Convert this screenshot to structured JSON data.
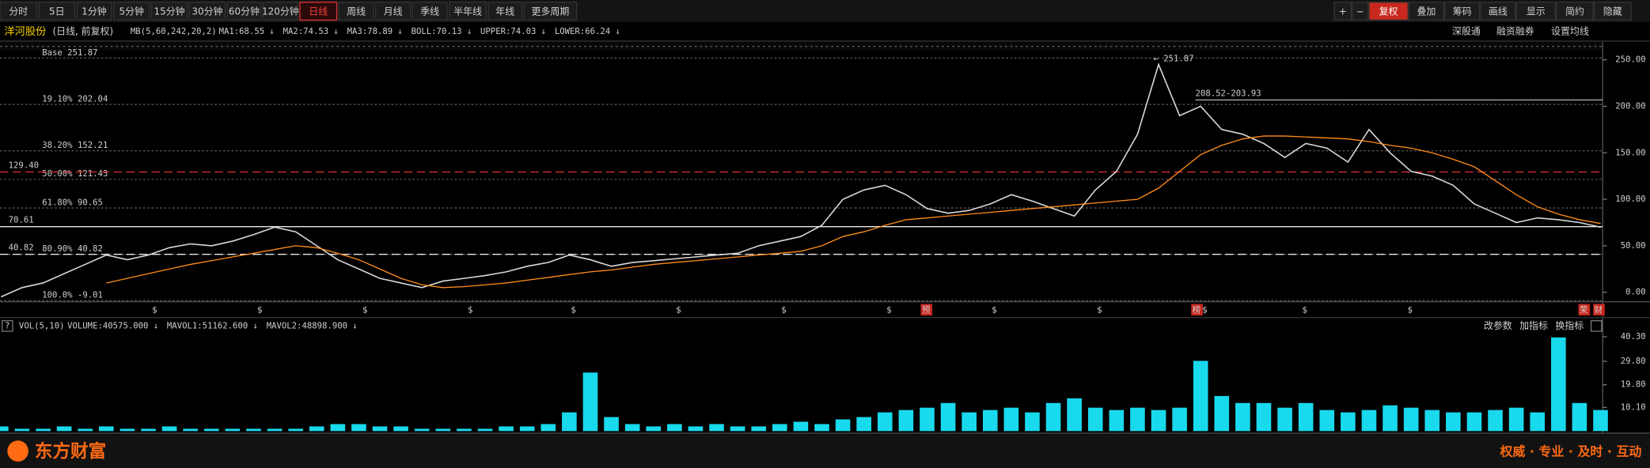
{
  "toolbar": {
    "periods": [
      "分时",
      "5日",
      "1分钟",
      "5分钟",
      "15分钟",
      "30分钟",
      "60分钟",
      "120分钟",
      "日线",
      "周线",
      "月线",
      "季线",
      "半年线",
      "年线",
      "更多周期"
    ],
    "active_period": "日线",
    "right_buttons": [
      "+",
      "−",
      "复权",
      "叠加",
      "筹码",
      "画线",
      "显示",
      "简约",
      "隐藏"
    ],
    "highlighted_button": "复权"
  },
  "info_bar": {
    "name": "洋河股份",
    "mode": "(日线, 前复权)",
    "indicator": "MB(5,60,242,20,2)",
    "items": [
      {
        "text": "MA1:68.55 ↓",
        "color": "#ff4b70"
      },
      {
        "text": "MA2:74.53 ↓",
        "color": "#3ea3ff"
      },
      {
        "text": "MA3:78.89 ↓",
        "color": "#ff9a2e"
      },
      {
        "text": "BOLL:70.13 ↓",
        "color": "#f5e23c"
      },
      {
        "text": "UPPER:74.03 ↓",
        "color": "#9a9a9a"
      },
      {
        "text": "LOWER:66.24 ↓",
        "color": "#9a9a9a"
      }
    ],
    "links": [
      "深股通",
      "融资融券",
      "设置均线"
    ]
  },
  "chart_data": [
    {
      "type": "line",
      "series": [
        {
          "color": "#d8d8d8",
          "values": [
            -5,
            5,
            10,
            20,
            30,
            40,
            35,
            40,
            48,
            52,
            50,
            55,
            62,
            70,
            65,
            50,
            35,
            25,
            15,
            10,
            5,
            12,
            15,
            18,
            22,
            28,
            32,
            40,
            35,
            28,
            32,
            34,
            36,
            38,
            40,
            42,
            50,
            55,
            60,
            72,
            100,
            110,
            115,
            105,
            90,
            85,
            88,
            95,
            105,
            98,
            90,
            82,
            110,
            130,
            170,
            245,
            190,
            200,
            175,
            170,
            160,
            145,
            160,
            155,
            140,
            175,
            150,
            130,
            125,
            115,
            95,
            85,
            75,
            80,
            78,
            75,
            70
          ]
        },
        {
          "color": "#ff8c1a",
          "values": [
            null,
            null,
            null,
            null,
            null,
            10,
            15,
            20,
            25,
            30,
            34,
            38,
            42,
            46,
            50,
            48,
            42,
            35,
            25,
            15,
            8,
            5,
            6,
            8,
            10,
            13,
            16,
            19,
            22,
            24,
            27,
            30,
            32,
            34,
            36,
            38,
            40,
            42,
            44,
            50,
            60,
            65,
            72,
            78,
            80,
            82,
            84,
            86,
            88,
            90,
            92,
            94,
            96,
            98,
            100,
            112,
            130,
            148,
            158,
            165,
            168,
            168,
            167,
            166,
            165,
            162,
            158,
            155,
            150,
            143,
            135,
            120,
            105,
            92,
            84,
            78,
            74
          ]
        }
      ],
      "ylim": [
        -8,
        269
      ],
      "yticks": [
        {
          "value": 0,
          "label": "0.00"
        },
        {
          "value": 50,
          "label": "50.00"
        },
        {
          "value": 100,
          "label": "100.00"
        },
        {
          "value": 150,
          "label": "150.00"
        },
        {
          "value": 200,
          "label": "200.00"
        },
        {
          "value": 250,
          "label": "250.00"
        }
      ],
      "levels": [
        {
          "value": 251.87,
          "label": "Base 251.87"
        },
        {
          "value": 202.04,
          "label": "19.10% 202.04"
        },
        {
          "value": 152.21,
          "label": "38.20% 152.21"
        },
        {
          "value": 121.43,
          "label": "50.00% 121.43"
        },
        {
          "value": 90.65,
          "label": "61.80% 90.65"
        },
        {
          "value": 40.82,
          "label": "80.90% 40.82"
        },
        {
          "value": -9.01,
          "label": "100.0% -9.01"
        }
      ],
      "price_lines": [
        {
          "value": 129.4,
          "label": "129.40",
          "color": "#e0303a",
          "dash": true
        },
        {
          "value": 70.61,
          "label": "70.61",
          "color": "#e8e8e8",
          "dash": false
        },
        {
          "value": 40.82,
          "label": "40.82",
          "color": "#e8e8e8",
          "dash": true
        }
      ],
      "annotations": [
        "← 251.87",
        "208.52-203.93"
      ],
      "markers": [
        "$",
        "$",
        "$",
        "$",
        "$",
        "$",
        "$",
        "$",
        "预",
        "$",
        "$",
        "榜",
        "$",
        "$",
        "$",
        "荣",
        "财"
      ]
    },
    {
      "type": "bar",
      "title": "VOL(5,10)",
      "legend": [
        {
          "text": "VOLUME:40575.000 ↓",
          "color": "#e8e8e8"
        },
        {
          "text": "MAVOL1:51162.600 ↓",
          "color": "#ff3df0"
        },
        {
          "text": "MAVOL2:48898.900 ↓",
          "color": "#f5e23c"
        }
      ],
      "series": [
        {
          "color": "#19d9ec",
          "values": [
            2,
            1,
            1,
            2,
            1,
            2,
            1,
            1,
            2,
            1,
            1,
            1,
            1,
            1,
            1,
            2,
            3,
            3,
            2,
            2,
            1,
            1,
            1,
            1,
            2,
            2,
            3,
            8,
            25,
            6,
            3,
            2,
            3,
            2,
            3,
            2,
            2,
            3,
            4,
            3,
            5,
            6,
            8,
            9,
            10,
            12,
            8,
            9,
            10,
            8,
            12,
            14,
            10,
            9,
            10,
            9,
            10,
            30,
            15,
            12,
            12,
            10,
            12,
            9,
            8,
            9,
            11,
            10,
            9,
            8,
            8,
            9,
            10,
            8,
            40,
            12,
            9
          ]
        }
      ],
      "ylim": [
        0,
        44
      ],
      "yticks": [
        {
          "value": 10.1,
          "label": "10.10"
        },
        {
          "value": 19.8,
          "label": "19.80"
        },
        {
          "value": 29.8,
          "label": "29.80"
        },
        {
          "value": 40.3,
          "label": "40.30"
        }
      ],
      "links": [
        "改参数",
        "加指标",
        "换指标"
      ]
    }
  ],
  "footer": {
    "brand": "东方财富",
    "slogan": "权威 · 专业 · 及时 · 互动"
  }
}
